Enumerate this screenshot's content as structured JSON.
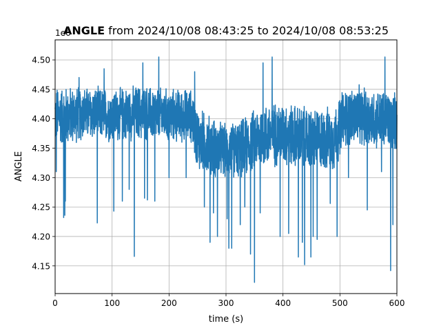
{
  "chart_data": {
    "type": "line",
    "title_bold": "ANGLE",
    "title_rest": " from 2024/10/08 08:43:25 to 2024/10/08 08:53:25",
    "xlabel": "time (s)",
    "ylabel": "ANGLE",
    "offset_label": "1e6",
    "xlim": [
      0,
      600
    ],
    "ylim": [
      4.103,
      4.534
    ],
    "xticks": [
      0,
      100,
      200,
      300,
      400,
      500,
      600
    ],
    "yticks": [
      4.15,
      4.2,
      4.25,
      4.3,
      4.35,
      4.4,
      4.45,
      4.5
    ],
    "ytick_labels": [
      "4.15",
      "4.20",
      "4.25",
      "4.30",
      "4.35",
      "4.40",
      "4.45",
      "4.50"
    ],
    "grid": true,
    "line_color": "#1f77b4",
    "series": [
      {
        "envelope": {
          "x": [
            0,
            25,
            50,
            100,
            150,
            200,
            240,
            250,
            280,
            300,
            330,
            360,
            400,
            450,
            490,
            505,
            530,
            560,
            600
          ],
          "center": [
            4.405,
            4.405,
            4.41,
            4.405,
            4.41,
            4.405,
            4.405,
            4.365,
            4.35,
            4.345,
            4.35,
            4.37,
            4.375,
            4.365,
            4.365,
            4.4,
            4.405,
            4.4,
            4.395
          ],
          "half_range": [
            0.055,
            0.055,
            0.05,
            0.05,
            0.052,
            0.05,
            0.05,
            0.06,
            0.055,
            0.05,
            0.055,
            0.06,
            0.06,
            0.058,
            0.06,
            0.055,
            0.055,
            0.055,
            0.055
          ]
        },
        "spikes": [
          [
            2,
            4.31
          ],
          [
            15,
            4.232
          ],
          [
            17,
            4.236
          ],
          [
            18,
            4.26
          ],
          [
            42,
            4.47
          ],
          [
            74,
            4.223
          ],
          [
            86,
            4.485
          ],
          [
            103,
            4.243
          ],
          [
            118,
            4.26
          ],
          [
            130,
            4.28
          ],
          [
            139,
            4.166
          ],
          [
            154,
            4.495
          ],
          [
            157,
            4.265
          ],
          [
            162,
            4.262
          ],
          [
            175,
            4.26
          ],
          [
            182,
            4.505
          ],
          [
            200,
            4.3
          ],
          [
            230,
            4.3
          ],
          [
            245,
            4.48
          ],
          [
            262,
            4.25
          ],
          [
            272,
            4.19
          ],
          [
            278,
            4.24
          ],
          [
            285,
            4.2
          ],
          [
            302,
            4.23
          ],
          [
            305,
            4.18
          ],
          [
            310,
            4.18
          ],
          [
            325,
            4.22
          ],
          [
            331,
            4.32
          ],
          [
            333,
            4.25
          ],
          [
            343,
            4.17
          ],
          [
            350,
            4.122
          ],
          [
            360,
            4.24
          ],
          [
            365,
            4.495
          ],
          [
            381,
            4.505
          ],
          [
            395,
            4.2
          ],
          [
            410,
            4.205
          ],
          [
            427,
            4.165
          ],
          [
            434,
            4.19
          ],
          [
            438,
            4.152
          ],
          [
            443,
            4.34
          ],
          [
            449,
            4.165
          ],
          [
            453,
            4.2
          ],
          [
            460,
            4.195
          ],
          [
            483,
            4.256
          ],
          [
            495,
            4.2
          ],
          [
            500,
            4.34
          ],
          [
            515,
            4.3
          ],
          [
            548,
            4.245
          ],
          [
            573,
            4.31
          ],
          [
            579,
            4.505
          ],
          [
            589,
            4.142
          ],
          [
            593,
            4.22
          ]
        ]
      }
    ]
  }
}
